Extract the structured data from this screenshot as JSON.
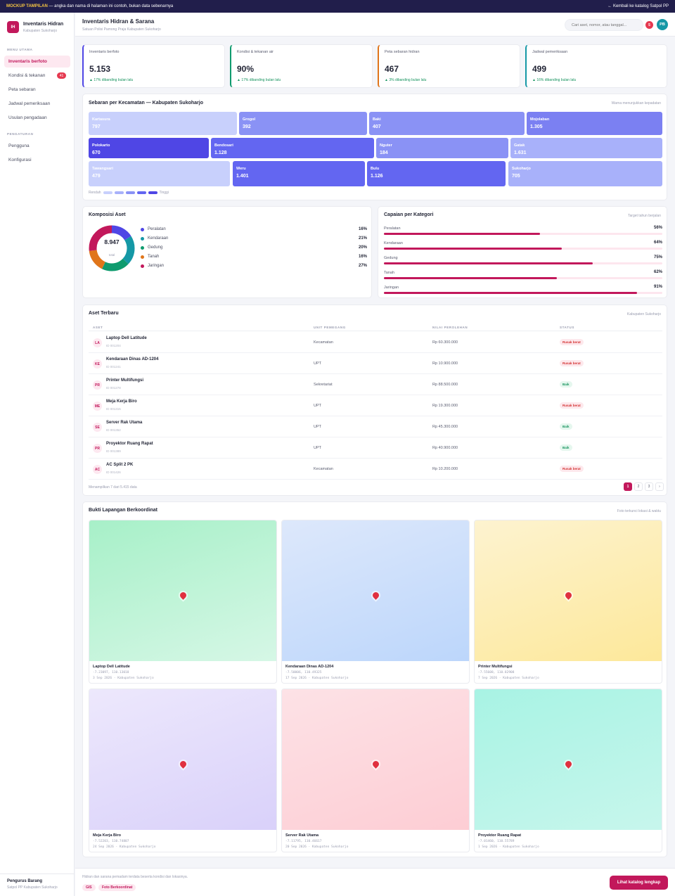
{
  "banner": {
    "tag": "MOCKUP TAMPILAN",
    "text": "— angka dan nama di halaman ini contoh, bukan data sebenarnya",
    "back_link": "← Kembali ke katalog Satpol PP"
  },
  "brand": {
    "logo": "IH",
    "title": "Inventaris Hidran",
    "subtitle": "Kabupaten Sukoharjo"
  },
  "sidebar": {
    "section_main": "MENU UTAMA",
    "items": [
      {
        "label": "Inventaris berfoto"
      },
      {
        "label": "Kondisi & tekanan",
        "badge": "41"
      },
      {
        "label": "Peta sebaran"
      },
      {
        "label": "Jadwal pemeriksaan"
      },
      {
        "label": "Usulan pengadaan"
      }
    ],
    "section_settings": "PENGATURAN",
    "settings_items": [
      {
        "label": "Pengguna"
      },
      {
        "label": "Konfigurasi"
      }
    ],
    "user": {
      "name": "Pengurus Barang",
      "role": "Satpol PP Kabupaten Sukoharjo"
    }
  },
  "header": {
    "title": "Inventaris Hidran & Sarana",
    "subtitle": "Satuan Polisi Pamong Praja Kabupaten Sukoharjo",
    "search_placeholder": "Cari aset, nomor, atau tanggal...",
    "notif_count": "5",
    "avatar": "PB"
  },
  "stats": [
    {
      "label": "Inventaris berfoto",
      "value": "5.153",
      "change": "▲ 17% dibanding bulan lalu",
      "color": "#4f46e5"
    },
    {
      "label": "Kondisi & tekanan air",
      "value": "90%",
      "change": "▲ 17% dibanding bulan lalu",
      "color": "#0f9b6e"
    },
    {
      "label": "Peta sebaran hidran",
      "value": "467",
      "change": "▲ 3% dibanding bulan lalu",
      "color": "#e0751a"
    },
    {
      "label": "Jadwal pemeriksaan",
      "value": "499",
      "change": "▲ 16% dibanding bulan lalu",
      "color": "#1598a6"
    }
  ],
  "heatmap": {
    "title": "Sebaran per Kecamatan — Kabupaten Sukoharjo",
    "note": "Warna menunjukkan kepadatan",
    "rows": [
      [
        {
          "name": "Kartasura",
          "value": "797",
          "color": "#c8d0fc"
        },
        {
          "name": "Grogol",
          "value": "392",
          "color": "#8a92f5"
        },
        {
          "name": "Baki",
          "value": "407",
          "color": "#8a92f5"
        },
        {
          "name": "Mojolaban",
          "value": "1.305",
          "color": "#7b80f2"
        }
      ],
      [
        {
          "name": "Polokarto",
          "value": "670",
          "color": "#4f46e5"
        },
        {
          "name": "Bendosari",
          "value": "1.128",
          "color": "#6366f1"
        },
        {
          "name": "Nguter",
          "value": "184",
          "color": "#8a92f5"
        },
        {
          "name": "Gatak",
          "value": "1.631",
          "color": "#a8b1fa"
        }
      ],
      [
        {
          "name": "Tawangsari",
          "value": "479",
          "color": "#c8d0fc"
        },
        {
          "name": "Weru",
          "value": "1.401",
          "color": "#6366f1"
        },
        {
          "name": "Bulu",
          "value": "1.126",
          "color": "#6366f1"
        },
        {
          "name": "Sukoharjo",
          "value": "705",
          "color": "#a8b1fa"
        }
      ]
    ],
    "legend_low": "Rendah",
    "legend_high": "Tinggi",
    "legend_colors": [
      "#c8d0fc",
      "#a8b1fa",
      "#8a92f5",
      "#6366f1",
      "#4f46e5"
    ]
  },
  "composition": {
    "title": "Komposisi Aset",
    "total": "8.947",
    "total_label": "total",
    "items": [
      {
        "label": "Peralatan",
        "pct": "16%",
        "value": 16,
        "color": "#4f46e5"
      },
      {
        "label": "Kendaraan",
        "pct": "21%",
        "value": 21,
        "color": "#1598a6"
      },
      {
        "label": "Gedung",
        "pct": "20%",
        "value": 20,
        "color": "#0f9b6e"
      },
      {
        "label": "Tanah",
        "pct": "16%",
        "value": 16,
        "color": "#e0751a"
      },
      {
        "label": "Jaringan",
        "pct": "27%",
        "value": 27,
        "color": "#c2185b"
      }
    ]
  },
  "achievement": {
    "title": "Capaian per Kategori",
    "note": "Target tahun berjalan",
    "items": [
      {
        "label": "Peralatan",
        "pct": "56%",
        "value": 56
      },
      {
        "label": "Kendaraan",
        "pct": "64%",
        "value": 64
      },
      {
        "label": "Gedung",
        "pct": "75%",
        "value": 75
      },
      {
        "label": "Tanah",
        "pct": "62%",
        "value": 62
      },
      {
        "label": "Jaringan",
        "pct": "91%",
        "value": 91
      }
    ]
  },
  "table": {
    "title": "Aset Terbaru",
    "note": "Kabupaten Sukoharjo",
    "headers": [
      "ASET",
      "UNIT PEMEGANG",
      "NILAI PEROLEHAN",
      "STATUS"
    ],
    "rows": [
      {
        "initials": "LA",
        "name": "Laptop Dell Latitude",
        "id": "ID 001204",
        "unit": "Kecamatan",
        "value": "Rp 60.300.000",
        "status": "Rusak berat",
        "status_type": "bad"
      },
      {
        "initials": "KE",
        "name": "Kendaraan Dinas AD-1204",
        "id": "ID 001241",
        "unit": "UPT",
        "value": "Rp 10.900.000",
        "status": "Rusak berat",
        "status_type": "bad"
      },
      {
        "initials": "PR",
        "name": "Printer Multifungsi",
        "id": "ID 001278",
        "unit": "Sekretariat",
        "value": "Rp 88.500.000",
        "status": "Baik",
        "status_type": "good"
      },
      {
        "initials": "ME",
        "name": "Meja Kerja Biro",
        "id": "ID 001315",
        "unit": "UPT",
        "value": "Rp 19.300.000",
        "status": "Rusak berat",
        "status_type": "bad"
      },
      {
        "initials": "SE",
        "name": "Server Rak Utama",
        "id": "ID 001352",
        "unit": "UPT",
        "value": "Rp 45.300.000",
        "status": "Baik",
        "status_type": "good"
      },
      {
        "initials": "PR",
        "name": "Proyektor Ruang Rapat",
        "id": "ID 001389",
        "unit": "UPT",
        "value": "Rp 40.900.000",
        "status": "Baik",
        "status_type": "good"
      },
      {
        "initials": "AC",
        "name": "AC Split 2 PK",
        "id": "ID 001426",
        "unit": "Kecamatan",
        "value": "Rp 10.200.000",
        "status": "Rusak berat",
        "status_type": "bad"
      }
    ],
    "footer_text": "Menampilkan 7 dari 5.415 data",
    "pages": [
      "1",
      "2",
      "3",
      "›"
    ]
  },
  "evidence": {
    "title": "Bukti Lapangan Berkoordinat",
    "note": "Foto terkunci lokasi & waktu",
    "photos": [
      {
        "name": "Laptop Dell Latitude",
        "coord": "-7.23097, 110.13018",
        "meta": "3 Sep 2026 · Kabupaten Sukoharjo",
        "color_top": "#a7f0c8",
        "color_bottom": "#d6f7e6"
      },
      {
        "name": "Kendaraan Dinas AD-1204",
        "coord": "-7.50006, 110.49325",
        "meta": "17 Sep 2026 · Kabupaten Sukoharjo",
        "color_top": "#dde8fb",
        "color_bottom": "#bcd6fb"
      },
      {
        "name": "Printer Multifungsi",
        "coord": "-7.55608, 110.82908",
        "meta": "7 Sep 2026 · Kabupaten Sukoharjo",
        "color_top": "#fdf3d0",
        "color_bottom": "#fde89a"
      },
      {
        "name": "Meja Kerja Biro",
        "coord": "-7.52203, 110.74807",
        "meta": "24 Sep 2026 · Kabupaten Sukoharjo",
        "color_top": "#ede8fc",
        "color_bottom": "#d9d1fa"
      },
      {
        "name": "Server Rak Utama",
        "coord": "-7.11795, 110.46617",
        "meta": "20 Sep 2026 · Kabupaten Sukoharjo",
        "color_top": "#fde2e6",
        "color_bottom": "#fdcdd4"
      },
      {
        "name": "Proyektor Ruang Rapat",
        "coord": "-7.01460, 110.55789",
        "meta": "1 Sep 2026 · Kabupaten Sukoharjo",
        "color_top": "#a8f3e4",
        "color_bottom": "#c7f6ec"
      }
    ]
  },
  "footer": {
    "text": "Hidran dan sarana pemadam terdata beserta kondisi dan lokasinya.",
    "chips": [
      "GIS",
      "Foto Berkoordinat"
    ],
    "cta": "Lihat katalog lengkap"
  }
}
